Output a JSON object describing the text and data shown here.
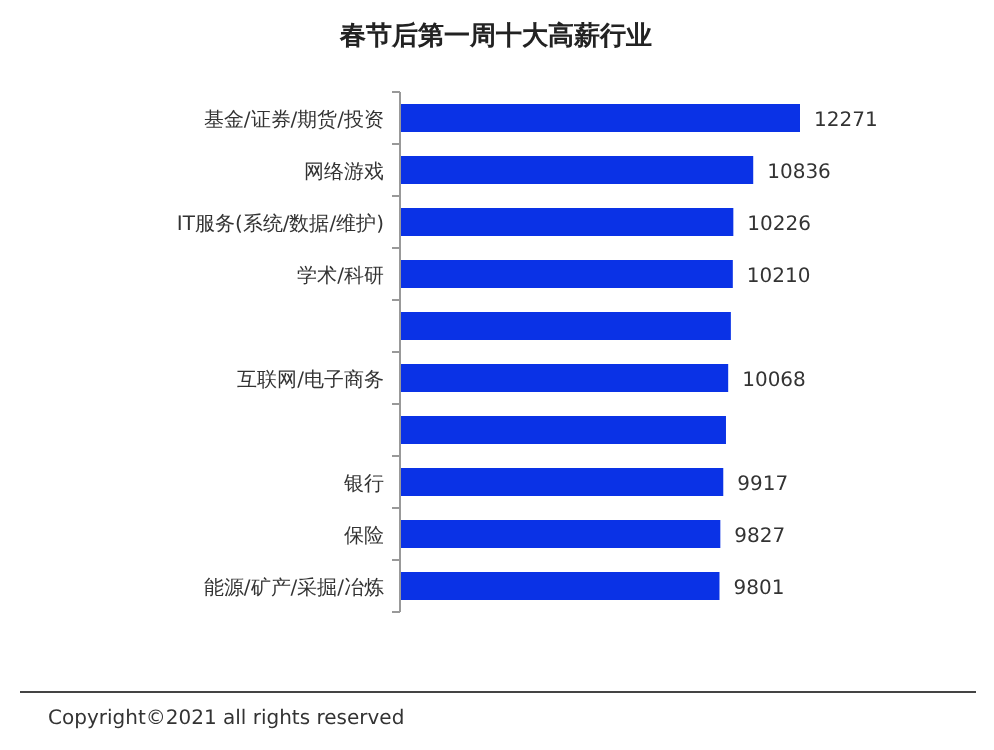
{
  "chart_data": {
    "type": "bar",
    "orientation": "horizontal",
    "title": "春节后第一周十大高薪行业",
    "categories": [
      "基金/证券/期货/投资",
      "网络游戏",
      "IT服务(系统/数据/维护)",
      "学术/科研",
      null,
      "互联网/电子商务",
      null,
      "银行",
      "保险",
      "能源/矿产/采掘/冶炼"
    ],
    "values": [
      12271,
      10836,
      10226,
      10210,
      10150,
      10068,
      10000,
      9917,
      9827,
      9801
    ],
    "value_labels": [
      "12271",
      "10836",
      "10226",
      "10210",
      null,
      "10068",
      null,
      "9917",
      "9827",
      "9801"
    ],
    "color": "#0a32e6",
    "annotations": [
      "Copyright©2021 all rights reserved"
    ]
  }
}
